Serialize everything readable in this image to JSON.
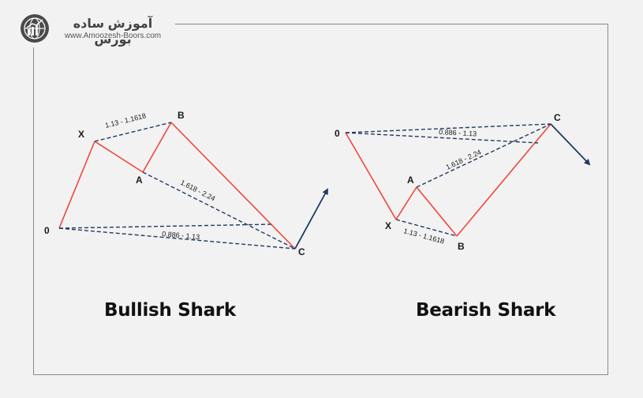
{
  "brand": {
    "name": "آموزش ساده بورس",
    "url": "www.Amoozesh-Boors.com",
    "logo_icon": "chart-globe-icon"
  },
  "colors": {
    "leg": "#f0463c",
    "dashed": "#1f3b63",
    "arrow": "#1f3b63",
    "text": "#111111"
  },
  "bullish": {
    "title": "Bullish Shark",
    "points": {
      "O": "0",
      "X": "X",
      "A": "A",
      "B": "B",
      "C": "C"
    },
    "ratios": {
      "xb": "1.13 - 1.1618",
      "ac": "1.618 - 2.24",
      "oc": "0.886 - 1.13"
    }
  },
  "bearish": {
    "title": "Bearish Shark",
    "points": {
      "O": "0",
      "X": "X",
      "A": "A",
      "B": "B",
      "C": "C"
    },
    "ratios": {
      "xb": "1.13 - 1.1618",
      "ac": "1.618 - 2.24",
      "oc": "0.886 - 1.13"
    }
  }
}
